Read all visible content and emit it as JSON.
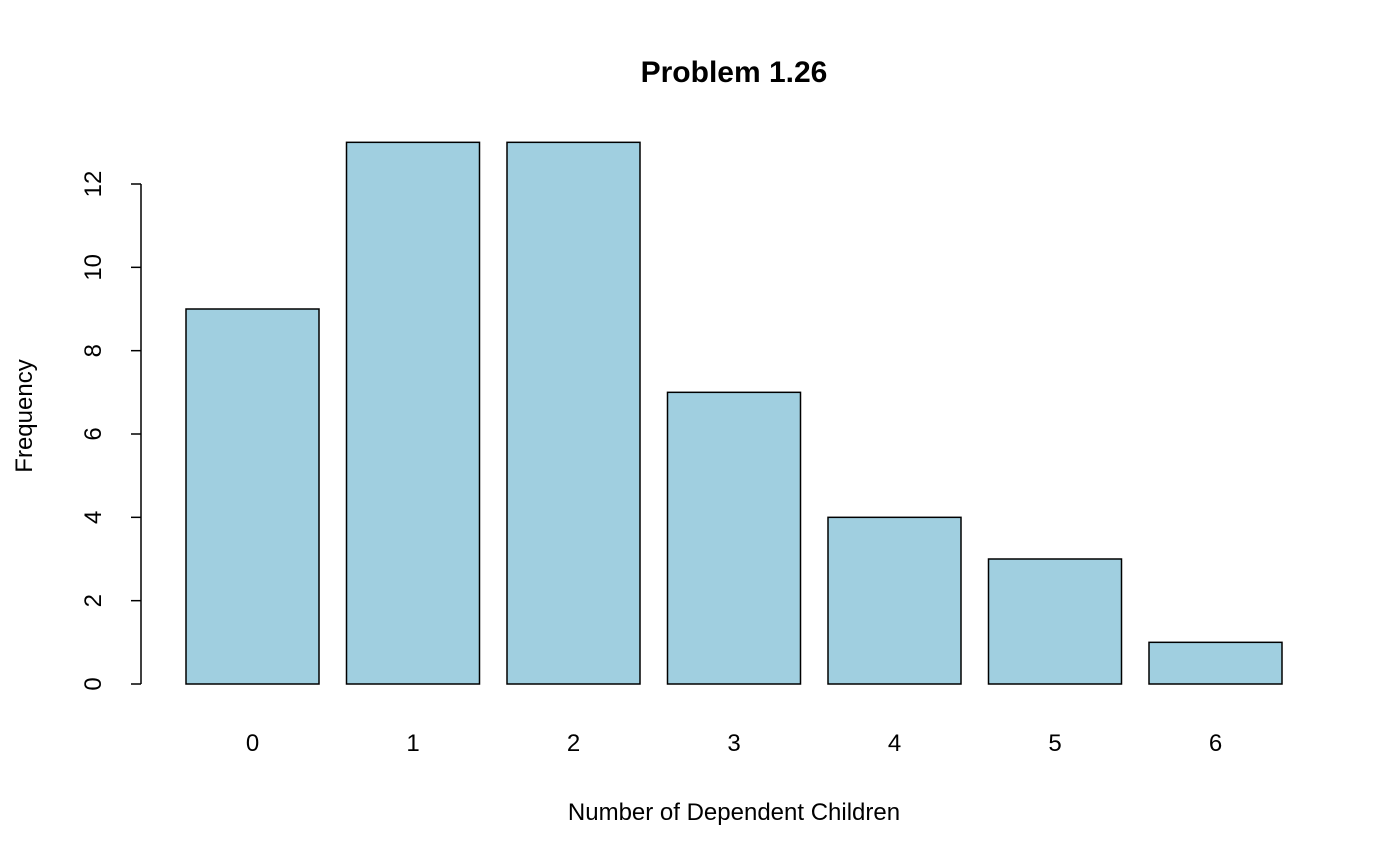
{
  "chart_data": {
    "type": "bar",
    "title": "Problem 1.26",
    "xlabel": "Number of Dependent Children",
    "ylabel": "Frequency",
    "categories": [
      "0",
      "1",
      "2",
      "3",
      "4",
      "5",
      "6"
    ],
    "values": [
      9,
      13,
      13,
      7,
      4,
      3,
      1
    ],
    "ylim": [
      0,
      13
    ],
    "yticks": [
      0,
      2,
      4,
      6,
      8,
      10,
      12
    ],
    "grid": false,
    "bar_color": "#A0CFE0",
    "bar_border_color": "#000000"
  }
}
